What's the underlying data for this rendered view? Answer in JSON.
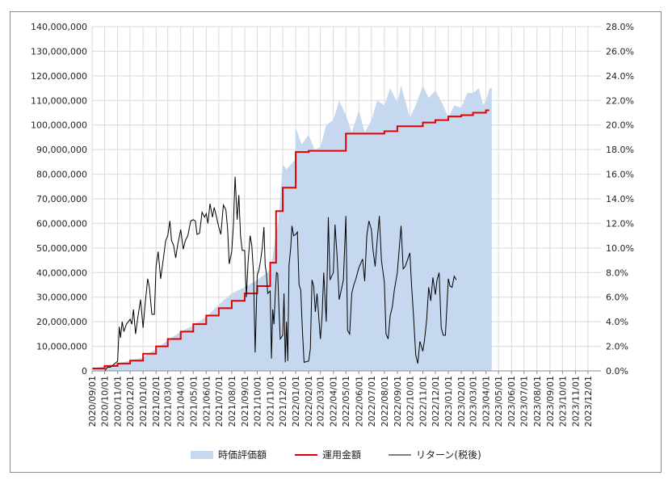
{
  "chart_data": {
    "type": "line",
    "title": "",
    "x_start": "2020/09/01",
    "x_end": "2024/01/01",
    "x_tick_labels": [
      "2020/09/01",
      "2020/10/01",
      "2020/11/01",
      "2020/12/01",
      "2021/01/01",
      "2021/02/01",
      "2021/03/01",
      "2021/04/01",
      "2021/05/01",
      "2021/06/01",
      "2021/07/01",
      "2021/08/01",
      "2021/09/01",
      "2021/10/01",
      "2021/11/01",
      "2021/12/01",
      "2022/01/01",
      "2022/02/01",
      "2022/03/01",
      "2022/04/01",
      "2022/05/01",
      "2022/06/01",
      "2022/07/01",
      "2022/08/01",
      "2022/09/01",
      "2022/10/01",
      "2022/11/01",
      "2022/12/01",
      "2023/01/01",
      "2023/02/01",
      "2023/03/01",
      "2023/04/01",
      "2023/05/01",
      "2023/06/01",
      "2023/07/01",
      "2023/08/01",
      "2023/09/01",
      "2023/10/01",
      "2023/11/01",
      "2023/12/01"
    ],
    "y_left": {
      "min": 0,
      "max": 140000000,
      "step": 10000000,
      "tick_labels": [
        "0",
        "10,000,000",
        "20,000,000",
        "30,000,000",
        "40,000,000",
        "50,000,000",
        "60,000,000",
        "70,000,000",
        "80,000,000",
        "90,000,000",
        "100,000,000",
        "110,000,000",
        "120,000,000",
        "130,000,000",
        "140,000,000"
      ]
    },
    "y_right": {
      "min": 0,
      "max": 28,
      "step": 2,
      "tick_labels": [
        "0.0%",
        "2.0%",
        "4.0%",
        "6.0%",
        "8.0%",
        "10.0%",
        "12.0%",
        "14.0%",
        "16.0%",
        "18.0%",
        "20.0%",
        "22.0%",
        "24.0%",
        "26.0%",
        "28.0%"
      ]
    },
    "gridlines": "horizontal",
    "legend_position": "bottom",
    "series": [
      {
        "name": "時価評価額",
        "kind": "area",
        "axis": "left",
        "color": "#c6d8f0",
        "points": [
          [
            "2020/09/01",
            1000000
          ],
          [
            "2020/10/01",
            2000000
          ],
          [
            "2020/11/01",
            3000000
          ],
          [
            "2020/12/01",
            4200000
          ],
          [
            "2021/01/01",
            5500000
          ],
          [
            "2021/02/01",
            9000000
          ],
          [
            "2021/03/01",
            12500000
          ],
          [
            "2021/04/01",
            16000000
          ],
          [
            "2021/05/01",
            18500000
          ],
          [
            "2021/06/01",
            22000000
          ],
          [
            "2021/07/01",
            27000000
          ],
          [
            "2021/08/01",
            31500000
          ],
          [
            "2021/09/01",
            34000000
          ],
          [
            "2021/10/01",
            37000000
          ],
          [
            "2021/11/01",
            41000000
          ],
          [
            "2021/11/20",
            60000000
          ],
          [
            "2021/12/01",
            84000000
          ],
          [
            "2021/12/10",
            82000000
          ],
          [
            "2021/12/31",
            86000000
          ],
          [
            "2022/01/01",
            99000000
          ],
          [
            "2022/01/15",
            92000000
          ],
          [
            "2022/02/01",
            96000000
          ],
          [
            "2022/02/15",
            90000000
          ],
          [
            "2022/03/01",
            91000000
          ],
          [
            "2022/03/15",
            100000000
          ],
          [
            "2022/04/01",
            102000000
          ],
          [
            "2022/04/15",
            110000000
          ],
          [
            "2022/05/01",
            104000000
          ],
          [
            "2022/05/15",
            97000000
          ],
          [
            "2022/06/01",
            106000000
          ],
          [
            "2022/06/15",
            97000000
          ],
          [
            "2022/07/01",
            102000000
          ],
          [
            "2022/07/15",
            110000000
          ],
          [
            "2022/08/01",
            108000000
          ],
          [
            "2022/08/15",
            115000000
          ],
          [
            "2022/09/01",
            109000000
          ],
          [
            "2022/09/10",
            116000000
          ],
          [
            "2022/10/01",
            103000000
          ],
          [
            "2022/10/15",
            108000000
          ],
          [
            "2022/11/01",
            116000000
          ],
          [
            "2022/11/15",
            111000000
          ],
          [
            "2022/12/01",
            114000000
          ],
          [
            "2022/12/20",
            108000000
          ],
          [
            "2023/01/01",
            103000000
          ],
          [
            "2023/01/15",
            108000000
          ],
          [
            "2023/02/01",
            107000000
          ],
          [
            "2023/02/15",
            113000000
          ],
          [
            "2023/03/01",
            113000000
          ],
          [
            "2023/03/15",
            115000000
          ],
          [
            "2023/03/25",
            108000000
          ],
          [
            "2023/04/01",
            110000000
          ],
          [
            "2023/04/10",
            115000000
          ],
          [
            "2023/04/15",
            115000000
          ]
        ]
      },
      {
        "name": "運用金額",
        "kind": "step",
        "axis": "left",
        "color": "#e00000",
        "points": [
          [
            "2020/09/01",
            1000000
          ],
          [
            "2020/10/01",
            2000000
          ],
          [
            "2020/11/01",
            3000000
          ],
          [
            "2020/12/01",
            4200000
          ],
          [
            "2021/01/01",
            7000000
          ],
          [
            "2021/02/01",
            10000000
          ],
          [
            "2021/03/01",
            13000000
          ],
          [
            "2021/04/01",
            16000000
          ],
          [
            "2021/05/01",
            19000000
          ],
          [
            "2021/06/01",
            22500000
          ],
          [
            "2021/07/01",
            25500000
          ],
          [
            "2021/08/01",
            28500000
          ],
          [
            "2021/09/01",
            31500000
          ],
          [
            "2021/10/01",
            34500000
          ],
          [
            "2021/11/01",
            44000000
          ],
          [
            "2021/11/15",
            65000000
          ],
          [
            "2021/12/01",
            74500000
          ],
          [
            "2022/01/01",
            89000000
          ],
          [
            "2022/02/01",
            89500000
          ],
          [
            "2022/05/01",
            96500000
          ],
          [
            "2022/08/01",
            97500000
          ],
          [
            "2022/09/01",
            99500000
          ],
          [
            "2022/11/01",
            101000000
          ],
          [
            "2022/12/01",
            102000000
          ],
          [
            "2023/01/01",
            103500000
          ],
          [
            "2023/02/01",
            104000000
          ],
          [
            "2023/03/01",
            105000000
          ],
          [
            "2023/04/01",
            106000000
          ]
        ]
      },
      {
        "name": "リターン(税後)",
        "kind": "line",
        "axis": "right",
        "color": "#000000",
        "points": [
          [
            "2020/10/01",
            0.0
          ],
          [
            "2020/10/08",
            0.3
          ],
          [
            "2020/10/15",
            0.3
          ],
          [
            "2020/10/22",
            0.5
          ],
          [
            "2020/11/01",
            0.8
          ],
          [
            "2020/11/05",
            3.6
          ],
          [
            "2020/11/08",
            2.7
          ],
          [
            "2020/11/12",
            4.0
          ],
          [
            "2020/11/16",
            3.2
          ],
          [
            "2020/11/22",
            3.8
          ],
          [
            "2020/12/01",
            4.2
          ],
          [
            "2020/12/05",
            3.8
          ],
          [
            "2020/12/09",
            5.0
          ],
          [
            "2020/12/14",
            3.0
          ],
          [
            "2020/12/20",
            4.5
          ],
          [
            "2020/12/26",
            5.8
          ],
          [
            "2021/01/01",
            3.5
          ],
          [
            "2021/01/06",
            5.5
          ],
          [
            "2021/01/12",
            7.5
          ],
          [
            "2021/01/16",
            6.8
          ],
          [
            "2021/01/22",
            4.6
          ],
          [
            "2021/01/28",
            4.6
          ],
          [
            "2021/02/01",
            8.5
          ],
          [
            "2021/02/06",
            9.7
          ],
          [
            "2021/02/12",
            7.5
          ],
          [
            "2021/02/18",
            9.0
          ],
          [
            "2021/02/24",
            10.6
          ],
          [
            "2021/03/01",
            11.0
          ],
          [
            "2021/03/06",
            12.2
          ],
          [
            "2021/03/10",
            10.6
          ],
          [
            "2021/03/15",
            10.2
          ],
          [
            "2021/03/20",
            9.2
          ],
          [
            "2021/03/25",
            10.3
          ],
          [
            "2021/04/01",
            11.5
          ],
          [
            "2021/04/07",
            9.9
          ],
          [
            "2021/04/12",
            10.6
          ],
          [
            "2021/04/18",
            11.0
          ],
          [
            "2021/04/25",
            12.2
          ],
          [
            "2021/05/01",
            12.3
          ],
          [
            "2021/05/06",
            12.2
          ],
          [
            "2021/05/10",
            11.1
          ],
          [
            "2021/05/16",
            11.2
          ],
          [
            "2021/05/22",
            12.9
          ],
          [
            "2021/05/28",
            12.5
          ],
          [
            "2021/06/01",
            12.8
          ],
          [
            "2021/06/05",
            12.0
          ],
          [
            "2021/06/10",
            13.6
          ],
          [
            "2021/06/16",
            12.5
          ],
          [
            "2021/06/20",
            13.3
          ],
          [
            "2021/06/25",
            12.6
          ],
          [
            "2021/07/01",
            11.7
          ],
          [
            "2021/07/06",
            11.1
          ],
          [
            "2021/07/12",
            13.5
          ],
          [
            "2021/07/18",
            13.1
          ],
          [
            "2021/07/22",
            11.6
          ],
          [
            "2021/07/26",
            8.7
          ],
          [
            "2021/08/01",
            9.7
          ],
          [
            "2021/08/05",
            11.9
          ],
          [
            "2021/08/09",
            15.8
          ],
          [
            "2021/08/14",
            12.3
          ],
          [
            "2021/08/18",
            14.3
          ],
          [
            "2021/08/22",
            11.0
          ],
          [
            "2021/08/26",
            9.8
          ],
          [
            "2021/09/01",
            9.8
          ],
          [
            "2021/09/05",
            6.0
          ],
          [
            "2021/09/09",
            8.8
          ],
          [
            "2021/09/14",
            11.0
          ],
          [
            "2021/09/18",
            10.2
          ],
          [
            "2021/09/22",
            8.0
          ],
          [
            "2021/09/26",
            1.5
          ],
          [
            "2021/10/01",
            7.8
          ],
          [
            "2021/10/05",
            8.2
          ],
          [
            "2021/10/09",
            9.0
          ],
          [
            "2021/10/13",
            10.0
          ],
          [
            "2021/10/17",
            11.7
          ],
          [
            "2021/10/20",
            8.6
          ],
          [
            "2021/10/23",
            7.9
          ],
          [
            "2021/10/26",
            6.3
          ],
          [
            "2021/11/01",
            6.5
          ],
          [
            "2021/11/04",
            1.0
          ],
          [
            "2021/11/07",
            5.0
          ],
          [
            "2021/11/10",
            3.8
          ],
          [
            "2021/11/13",
            6.2
          ],
          [
            "2021/11/16",
            8.0
          ],
          [
            "2021/11/19",
            7.9
          ],
          [
            "2021/11/22",
            5.0
          ],
          [
            "2021/11/25",
            2.6
          ],
          [
            "2021/12/01",
            2.9
          ],
          [
            "2021/12/04",
            6.3
          ],
          [
            "2021/12/07",
            0.7
          ],
          [
            "2021/12/10",
            4.0
          ],
          [
            "2021/12/13",
            0.8
          ],
          [
            "2021/12/16",
            8.6
          ],
          [
            "2021/12/20",
            10.0
          ],
          [
            "2021/12/23",
            11.8
          ],
          [
            "2021/12/27",
            11.0
          ],
          [
            "2022/01/01",
            11.1
          ],
          [
            "2022/01/05",
            11.3
          ],
          [
            "2022/01/09",
            7.0
          ],
          [
            "2022/01/13",
            6.6
          ],
          [
            "2022/01/17",
            3.3
          ],
          [
            "2022/01/21",
            0.7
          ],
          [
            "2022/02/01",
            0.8
          ],
          [
            "2022/02/05",
            1.8
          ],
          [
            "2022/02/09",
            7.4
          ],
          [
            "2022/02/13",
            6.9
          ],
          [
            "2022/02/17",
            4.8
          ],
          [
            "2022/02/21",
            6.3
          ],
          [
            "2022/03/01",
            2.6
          ],
          [
            "2022/03/05",
            4.4
          ],
          [
            "2022/03/09",
            8.0
          ],
          [
            "2022/03/15",
            4.0
          ],
          [
            "2022/03/20",
            12.5
          ],
          [
            "2022/03/24",
            7.4
          ],
          [
            "2022/04/01",
            8.0
          ],
          [
            "2022/04/05",
            11.9
          ],
          [
            "2022/04/10",
            9.3
          ],
          [
            "2022/04/15",
            5.8
          ],
          [
            "2022/04/20",
            6.6
          ],
          [
            "2022/04/25",
            7.4
          ],
          [
            "2022/05/01",
            12.6
          ],
          [
            "2022/05/05",
            3.3
          ],
          [
            "2022/05/10",
            3.0
          ],
          [
            "2022/05/15",
            6.3
          ],
          [
            "2022/05/20",
            7.0
          ],
          [
            "2022/05/25",
            7.5
          ],
          [
            "2022/06/01",
            8.4
          ],
          [
            "2022/06/05",
            8.7
          ],
          [
            "2022/06/10",
            9.1
          ],
          [
            "2022/06/15",
            7.3
          ],
          [
            "2022/06/20",
            11.0
          ],
          [
            "2022/06/25",
            12.2
          ],
          [
            "2022/07/01",
            11.5
          ],
          [
            "2022/07/05",
            9.8
          ],
          [
            "2022/07/10",
            8.5
          ],
          [
            "2022/07/15",
            10.7
          ],
          [
            "2022/07/20",
            12.6
          ],
          [
            "2022/07/25",
            9.0
          ],
          [
            "2022/08/01",
            7.2
          ],
          [
            "2022/08/05",
            3.0
          ],
          [
            "2022/08/10",
            2.6
          ],
          [
            "2022/08/15",
            4.5
          ],
          [
            "2022/08/20",
            5.2
          ],
          [
            "2022/08/25",
            6.6
          ],
          [
            "2022/09/01",
            8.0
          ],
          [
            "2022/09/05",
            9.7
          ],
          [
            "2022/09/10",
            11.8
          ],
          [
            "2022/09/15",
            8.3
          ],
          [
            "2022/09/20",
            8.5
          ],
          [
            "2022/09/25",
            9.0
          ],
          [
            "2022/10/01",
            9.6
          ],
          [
            "2022/10/05",
            7.0
          ],
          [
            "2022/10/10",
            4.3
          ],
          [
            "2022/10/15",
            1.3
          ],
          [
            "2022/10/20",
            0.6
          ],
          [
            "2022/10/25",
            2.4
          ],
          [
            "2022/11/01",
            1.6
          ],
          [
            "2022/11/05",
            2.5
          ],
          [
            "2022/11/10",
            4.1
          ],
          [
            "2022/11/15",
            6.8
          ],
          [
            "2022/11/20",
            5.7
          ],
          [
            "2022/11/25",
            7.6
          ],
          [
            "2022/12/01",
            6.2
          ],
          [
            "2022/12/05",
            7.4
          ],
          [
            "2022/12/10",
            8.0
          ],
          [
            "2022/12/15",
            3.5
          ],
          [
            "2022/12/20",
            2.9
          ],
          [
            "2022/12/25",
            2.9
          ],
          [
            "2023/01/01",
            7.5
          ],
          [
            "2023/01/05",
            6.9
          ],
          [
            "2023/01/10",
            6.8
          ],
          [
            "2023/01/15",
            7.7
          ],
          [
            "2023/01/20",
            7.4
          ]
        ]
      }
    ]
  }
}
